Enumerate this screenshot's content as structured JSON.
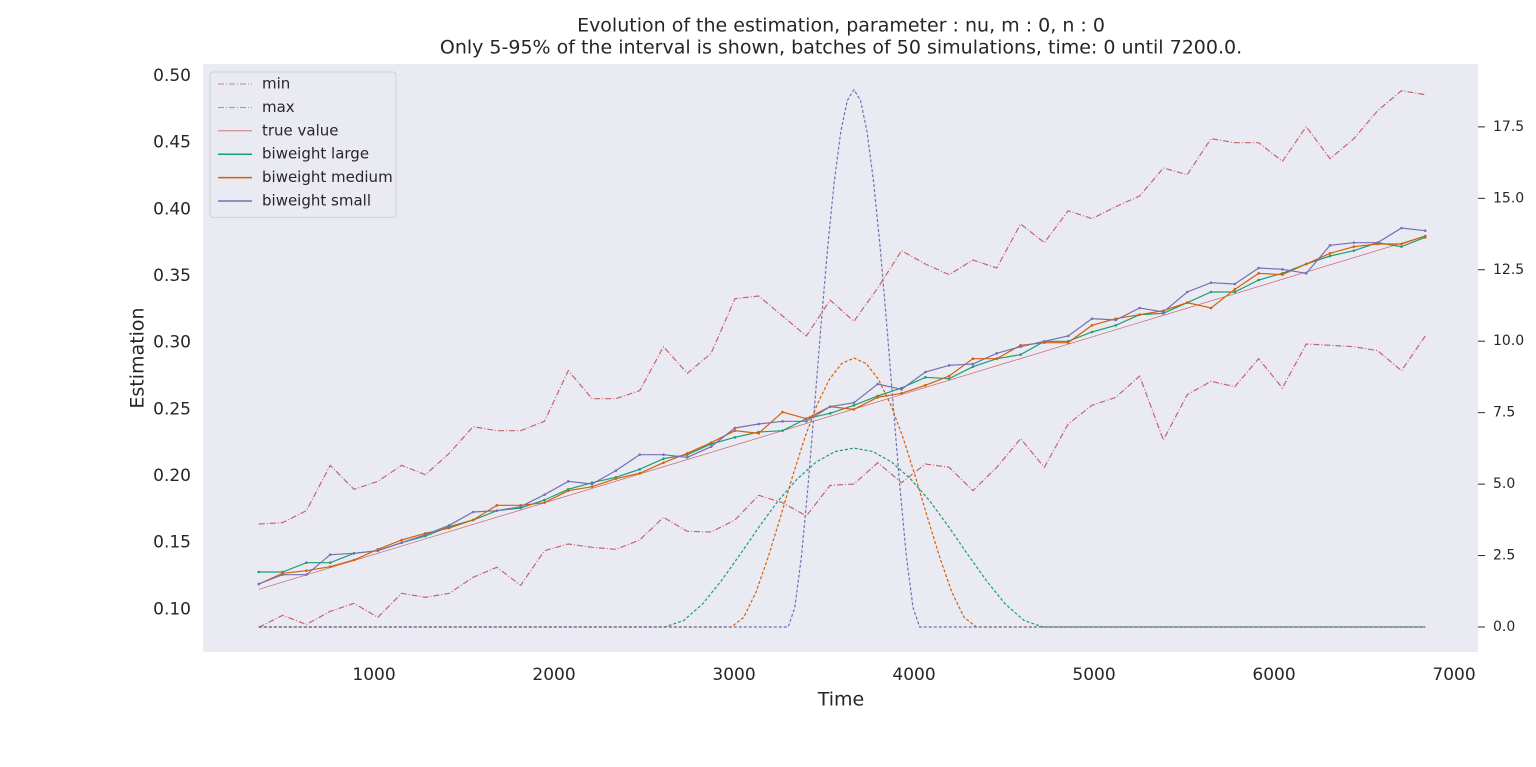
{
  "chart_data": {
    "type": "line",
    "title": "Evolution of the estimation, parameter : nu, m : 0, n : 0",
    "subtitle": "Only 5-95% of the interval is shown, batches of 50 simulations, time: 0 until 7200.0.",
    "xlabel": "Time",
    "ylabel": "Estimation",
    "background": "#eaeaf2",
    "grid": false,
    "legend": "upper left",
    "xlim": [
      50,
      7133
    ],
    "ylim": [
      0.068,
      0.509
    ],
    "y2lim": [
      -0.875,
      19.7
    ],
    "xticks": [
      1000,
      2000,
      3000,
      4000,
      5000,
      6000,
      7000
    ],
    "yticks": [
      {
        "value": 0.1,
        "label": "0.10"
      },
      0.15,
      {
        "value": 0.2,
        "label": "0.20"
      },
      0.25,
      {
        "value": 0.3,
        "label": "0.30"
      },
      0.35,
      {
        "value": 0.4,
        "label": "0.40"
      },
      0.45,
      {
        "value": 0.5,
        "label": "0.50"
      }
    ],
    "y2ticks": [
      {
        "value": 0,
        "label": "0.0"
      },
      2.5,
      {
        "value": 5,
        "label": "5.0"
      },
      7.5,
      {
        "value": 10,
        "label": "10.0"
      },
      12.5,
      {
        "value": 15,
        "label": "15.0"
      },
      17.5
    ],
    "x": [
      360,
      492.2,
      624.5,
      756.7,
      889.0,
      1021.2,
      1153.5,
      1285.7,
      1418.0,
      1550.2,
      1682.4,
      1814.7,
      1946.9,
      2079.2,
      2211.4,
      2343.7,
      2475.9,
      2608.2,
      2740.4,
      2872.7,
      3004.9,
      3137.1,
      3269.4,
      3401.6,
      3533.9,
      3666.1,
      3798.4,
      3930.6,
      4062.9,
      4195.1,
      4327.3,
      4459.6,
      4591.8,
      4724.1,
      4856.3,
      4988.6,
      5120.8,
      5253.1,
      5385.3,
      5517.6,
      5649.8,
      5782.0,
      5914.3,
      6046.5,
      6178.8,
      6311.0,
      6443.3,
      6575.5,
      6707.8,
      6840
    ],
    "series": [
      {
        "name": "min",
        "color": "#c8646e",
        "linestyle": "dashdot",
        "values": [
          0.0865,
          0.0955,
          0.0887,
          0.0985,
          0.1045,
          0.094,
          0.112,
          0.109,
          0.112,
          0.124,
          0.1315,
          0.118,
          0.144,
          0.149,
          0.1465,
          0.145,
          0.152,
          0.169,
          0.1585,
          0.158,
          0.167,
          0.1855,
          0.18,
          0.17,
          0.193,
          0.194,
          0.21,
          0.195,
          0.209,
          0.2065,
          0.189,
          0.2065,
          0.228,
          0.2065,
          0.239,
          0.253,
          0.259,
          0.275,
          0.227,
          0.261,
          0.271,
          0.267,
          0.288,
          0.266,
          0.299,
          0.298,
          0.297,
          0.294,
          0.279,
          0.305
        ]
      },
      {
        "name": "max",
        "color": "#c8646e",
        "linestyle": "dashdot",
        "values": [
          0.164,
          0.165,
          0.174,
          0.208,
          0.19,
          0.196,
          0.208,
          0.201,
          0.217,
          0.237,
          0.234,
          0.234,
          0.241,
          0.279,
          0.258,
          0.258,
          0.264,
          0.297,
          0.277,
          0.292,
          0.333,
          0.335,
          0.32,
          0.305,
          0.332,
          0.316,
          0.341,
          0.369,
          0.359,
          0.351,
          0.362,
          0.356,
          0.389,
          0.375,
          0.399,
          0.393,
          0.402,
          0.41,
          0.431,
          0.426,
          0.453,
          0.45,
          0.45,
          0.436,
          0.462,
          0.438,
          0.453,
          0.474,
          0.489,
          0.486
        ]
      },
      {
        "name": "true value",
        "color": "#c8646e",
        "linestyle": "solid",
        "x": [
          360,
          6840
        ],
        "values": [
          0.115,
          0.38
        ]
      },
      {
        "name": "biweight large",
        "color": "#1b9e77",
        "linestyle": "solid",
        "marker": true,
        "values": [
          0.128,
          0.128,
          0.135,
          0.135,
          0.142,
          0.144,
          0.15,
          0.155,
          0.162,
          0.167,
          0.174,
          0.176,
          0.182,
          0.19,
          0.195,
          0.199,
          0.205,
          0.213,
          0.216,
          0.224,
          0.229,
          0.233,
          0.234,
          0.243,
          0.247,
          0.253,
          0.26,
          0.266,
          0.274,
          0.273,
          0.282,
          0.288,
          0.291,
          0.301,
          0.301,
          0.308,
          0.313,
          0.321,
          0.322,
          0.33,
          0.338,
          0.338,
          0.347,
          0.352,
          0.359,
          0.365,
          0.369,
          0.375,
          0.372,
          0.379
        ]
      },
      {
        "name": "biweight medium",
        "color": "#d95f02",
        "linestyle": "solid",
        "marker": true,
        "values": [
          0.119,
          0.127,
          0.129,
          0.132,
          0.137,
          0.145,
          0.152,
          0.157,
          0.161,
          0.167,
          0.178,
          0.178,
          0.18,
          0.189,
          0.192,
          0.198,
          0.202,
          0.21,
          0.217,
          0.225,
          0.234,
          0.232,
          0.248,
          0.243,
          0.252,
          0.25,
          0.259,
          0.262,
          0.268,
          0.275,
          0.288,
          0.288,
          0.298,
          0.3,
          0.3,
          0.313,
          0.318,
          0.321,
          0.324,
          0.33,
          0.326,
          0.34,
          0.352,
          0.351,
          0.359,
          0.367,
          0.372,
          0.374,
          0.374,
          0.38
        ]
      },
      {
        "name": "biweight small",
        "color": "#7570b3",
        "linestyle": "solid",
        "marker": true,
        "values": [
          0.119,
          0.126,
          0.126,
          0.141,
          0.142,
          0.144,
          0.15,
          0.156,
          0.163,
          0.173,
          0.174,
          0.177,
          0.186,
          0.196,
          0.194,
          0.204,
          0.216,
          0.216,
          0.214,
          0.222,
          0.236,
          0.239,
          0.241,
          0.241,
          0.252,
          0.255,
          0.269,
          0.265,
          0.278,
          0.283,
          0.284,
          0.292,
          0.297,
          0.301,
          0.305,
          0.318,
          0.317,
          0.326,
          0.323,
          0.338,
          0.345,
          0.344,
          0.356,
          0.355,
          0.352,
          0.373,
          0.375,
          0.375,
          0.386,
          0.384
        ]
      },
      {
        "color": "#1b9e77",
        "linestyle": "dashed",
        "axis": "y2",
        "x": [
          360,
          2616,
          2721,
          2826,
          2931,
          3036,
          3141,
          3246,
          3351,
          3456,
          3561,
          3666,
          3771,
          3876,
          3981,
          4086,
          4191,
          4296,
          4401,
          4506,
          4611,
          4716,
          6840
        ],
        "values": [
          0,
          0,
          0.23,
          0.81,
          1.63,
          2.56,
          3.52,
          4.42,
          5.18,
          5.77,
          6.14,
          6.26,
          6.14,
          5.77,
          5.18,
          4.42,
          3.52,
          2.56,
          1.63,
          0.81,
          0.23,
          0,
          0
        ]
      },
      {
        "color": "#d95f02",
        "linestyle": "dashed",
        "axis": "y2",
        "x": [
          360,
          2986,
          3054,
          3122,
          3190,
          3258,
          3326,
          3394,
          3462,
          3530,
          3598,
          3666,
          3734,
          3802,
          3870,
          3938,
          4006,
          4074,
          4142,
          4210,
          4278,
          4346,
          6840
        ],
        "values": [
          0,
          0,
          0.34,
          1.22,
          2.45,
          3.85,
          5.29,
          6.64,
          7.79,
          8.67,
          9.22,
          9.41,
          9.22,
          8.67,
          7.79,
          6.64,
          5.29,
          3.85,
          2.45,
          1.22,
          0.34,
          0,
          0
        ]
      },
      {
        "color": "#7570b3",
        "linestyle": "dashed",
        "axis": "y2",
        "x": [
          360,
          3301,
          3337.5,
          3374,
          3410.5,
          3447,
          3483.5,
          3520,
          3556.5,
          3593,
          3629.5,
          3666,
          3702.5,
          3739,
          3775.5,
          3812,
          3848.5,
          3885,
          3921.5,
          3958,
          3994.5,
          4031,
          6840
        ],
        "values": [
          0,
          0,
          0.68,
          2.44,
          4.89,
          7.7,
          10.58,
          13.27,
          15.57,
          17.33,
          18.43,
          18.8,
          18.43,
          17.33,
          15.57,
          13.27,
          10.58,
          7.7,
          4.89,
          2.44,
          0.68,
          0,
          0
        ]
      }
    ]
  }
}
